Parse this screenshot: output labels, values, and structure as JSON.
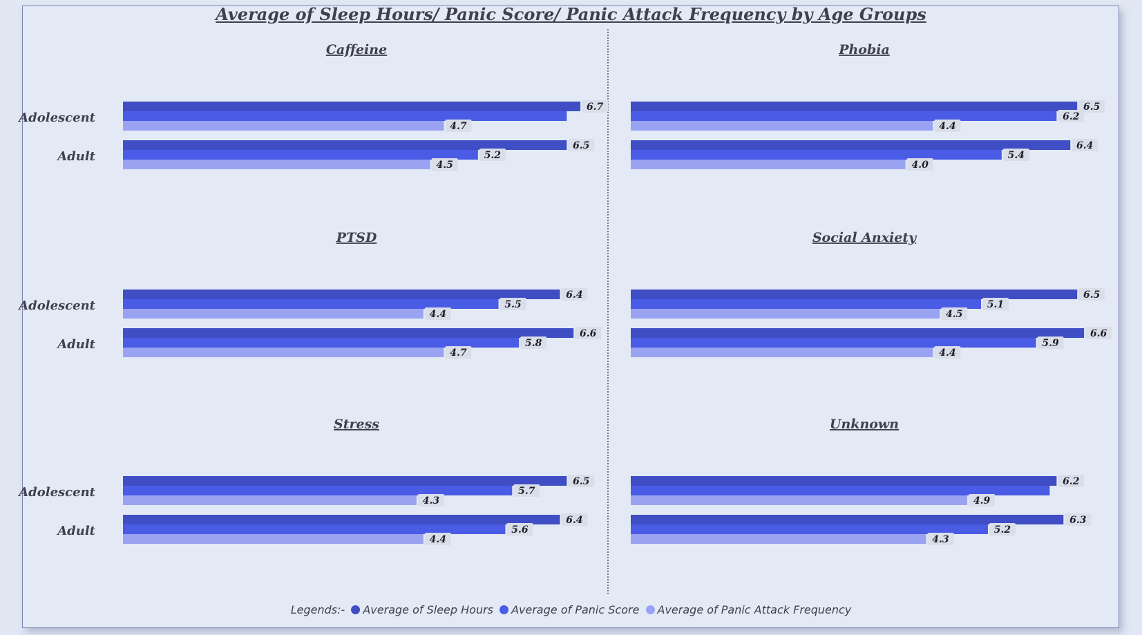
{
  "title": "Average of Sleep Hours/ Panic Score/ Panic Attack Frequency by Age Groups",
  "legend": {
    "prefix": "Legends:-",
    "items": [
      {
        "label": "Average of Sleep Hours",
        "color": "#3f4ec4"
      },
      {
        "label": "Average of Panic Score",
        "color": "#4a5be6"
      },
      {
        "label": "Average of Panic Attack Frequency",
        "color": "#9aa2f2"
      }
    ]
  },
  "chart_data": {
    "type": "bar",
    "orientation": "horizontal",
    "x_range": [
      0,
      6.8
    ],
    "series": [
      "Average of Sleep Hours",
      "Average of Panic Score",
      "Average of Panic Attack Frequency"
    ],
    "panels": [
      {
        "title": "Caffeine",
        "groups": [
          {
            "label": "Adolescent",
            "values": [
              6.7,
              6.5,
              4.7
            ],
            "labels": [
              "6.7",
              "",
              "4.7"
            ]
          },
          {
            "label": "Adult",
            "values": [
              6.5,
              5.2,
              4.5
            ],
            "labels": [
              "6.5",
              "5.2",
              "4.5"
            ]
          }
        ]
      },
      {
        "title": "Phobia",
        "groups": [
          {
            "label": "Adolescent",
            "values": [
              6.5,
              6.2,
              4.4
            ],
            "labels": [
              "6.5",
              "6.2",
              "4.4"
            ]
          },
          {
            "label": "Adult",
            "values": [
              6.4,
              5.4,
              4.0
            ],
            "labels": [
              "6.4",
              "5.4",
              "4.0"
            ]
          }
        ]
      },
      {
        "title": "PTSD",
        "groups": [
          {
            "label": "Adolescent",
            "values": [
              6.4,
              5.5,
              4.4
            ],
            "labels": [
              "6.4",
              "5.5",
              "4.4"
            ]
          },
          {
            "label": "Adult",
            "values": [
              6.6,
              5.8,
              4.7
            ],
            "labels": [
              "6.6",
              "5.8",
              "4.7"
            ]
          }
        ]
      },
      {
        "title": "Social Anxiety",
        "groups": [
          {
            "label": "Adolescent",
            "values": [
              6.5,
              5.1,
              4.5
            ],
            "labels": [
              "6.5",
              "5.1",
              "4.5"
            ]
          },
          {
            "label": "Adult",
            "values": [
              6.6,
              5.9,
              4.4
            ],
            "labels": [
              "6.6",
              "5.9",
              "4.4"
            ]
          }
        ]
      },
      {
        "title": "Stress",
        "groups": [
          {
            "label": "Adolescent",
            "values": [
              6.5,
              5.7,
              4.3
            ],
            "labels": [
              "6.5",
              "5.7",
              "4.3"
            ]
          },
          {
            "label": "Adult",
            "values": [
              6.4,
              5.6,
              4.4
            ],
            "labels": [
              "6.4",
              "5.6",
              "4.4"
            ]
          }
        ]
      },
      {
        "title": "Unknown",
        "groups": [
          {
            "label": "Adolescent",
            "values": [
              6.2,
              6.1,
              4.9
            ],
            "labels": [
              "6.2",
              "",
              "4.9"
            ]
          },
          {
            "label": "Adult",
            "values": [
              6.3,
              5.2,
              4.3
            ],
            "labels": [
              "6.3",
              "5.2",
              "4.3"
            ]
          }
        ]
      }
    ]
  }
}
